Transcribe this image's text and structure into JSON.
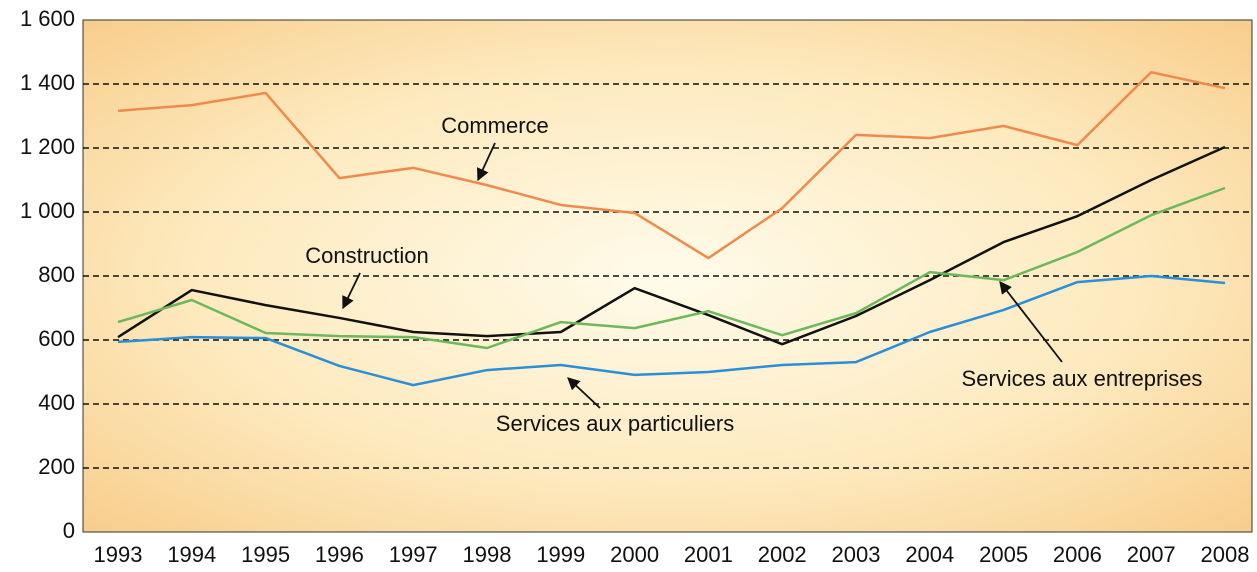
{
  "chart_data": {
    "type": "line",
    "categories": [
      "1993",
      "1994",
      "1995",
      "1996",
      "1997",
      "1998",
      "1999",
      "2000",
      "2001",
      "2002",
      "2003",
      "2004",
      "2005",
      "2006",
      "2007",
      "2008"
    ],
    "series": [
      {
        "name": "Commerce",
        "color": "#f08a4b",
        "values": [
          1316,
          1334,
          1372,
          1106,
          1138,
          1084,
          1022,
          997,
          856,
          1012,
          1241,
          1231,
          1269,
          1209,
          1437,
          1387
        ]
      },
      {
        "name": "Construction",
        "color": "#111111",
        "values": [
          609,
          756,
          709,
          669,
          625,
          612,
          625,
          762,
          678,
          587,
          675,
          787,
          906,
          987,
          1100,
          1203
        ]
      },
      {
        "name": "Services aux entreprises",
        "color": "#6cb85a",
        "values": [
          656,
          725,
          622,
          612,
          609,
          575,
          656,
          637,
          690,
          615,
          684,
          812,
          787,
          875,
          990,
          1075
        ]
      },
      {
        "name": "Services aux particuliers",
        "color": "#2a8fd6",
        "values": [
          594,
          609,
          606,
          519,
          459,
          506,
          522,
          491,
          500,
          522,
          531,
          625,
          694,
          781,
          800,
          778
        ]
      }
    ],
    "ylim": [
      0,
      1600
    ],
    "yticks": [
      0,
      200,
      400,
      600,
      800,
      {
        "value": 1000,
        "label": "1 000"
      },
      {
        "value": 1200,
        "label": "1 200"
      },
      {
        "value": 1400,
        "label": "1 400"
      },
      {
        "value": 1600,
        "label": "1 600"
      }
    ],
    "grid": true
  }
}
